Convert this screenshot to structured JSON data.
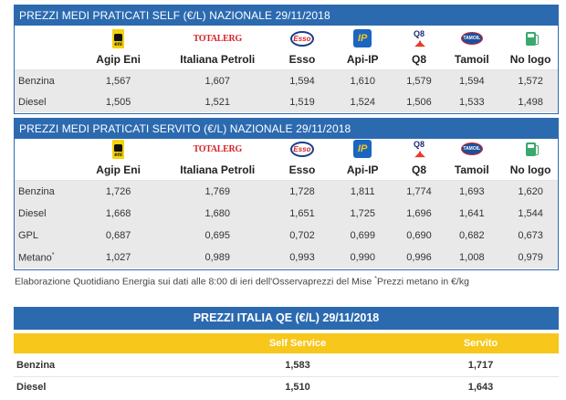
{
  "brands": [
    "Agip Eni",
    "Italiana Petroli",
    "Esso",
    "Api-IP",
    "Q8",
    "Tamoil",
    "No logo"
  ],
  "brand_logos": {
    "agip": {
      "icon": "agip-eni-logo",
      "text": "eni"
    },
    "totalerg": {
      "icon": "totalerg-logo",
      "text": "TOTALERG"
    },
    "esso": {
      "icon": "esso-logo",
      "text": "Esso"
    },
    "ip": {
      "icon": "api-ip-logo",
      "text": "IP"
    },
    "q8": {
      "icon": "q8-logo",
      "text": "Q8"
    },
    "tamoil": {
      "icon": "tamoil-logo",
      "text": "TAMOIL"
    },
    "nologo": {
      "icon": "fuel-pump-icon"
    }
  },
  "self_table": {
    "title": "PREZZI MEDI PRATICATI SELF (€/L) NAZIONALE 29/11/2018",
    "rows": [
      {
        "fuel": "Benzina",
        "values": [
          "1,567",
          "1,607",
          "1,594",
          "1,610",
          "1,579",
          "1,594",
          "1,572"
        ]
      },
      {
        "fuel": "Diesel",
        "values": [
          "1,505",
          "1,521",
          "1,519",
          "1,524",
          "1,506",
          "1,533",
          "1,498"
        ]
      }
    ]
  },
  "servito_table": {
    "title": "PREZZI MEDI PRATICATI SERVITO (€/L) NAZIONALE 29/11/2018",
    "rows": [
      {
        "fuel": "Benzina",
        "values": [
          "1,726",
          "1,769",
          "1,728",
          "1,811",
          "1,774",
          "1,693",
          "1,620"
        ]
      },
      {
        "fuel": "Diesel",
        "values": [
          "1,668",
          "1,680",
          "1,651",
          "1,725",
          "1,696",
          "1,641",
          "1,544"
        ]
      },
      {
        "fuel": "GPL",
        "values": [
          "0,687",
          "0,695",
          "0,702",
          "0,699",
          "0,690",
          "0,682",
          "0,673"
        ]
      },
      {
        "fuel": "Metano",
        "fuel_mark": "*",
        "values": [
          "1,027",
          "0,989",
          "0,993",
          "0,990",
          "0,996",
          "1,008",
          "0,979"
        ]
      }
    ]
  },
  "note": {
    "text": "Elaborazione Quotidiano Energia sui dati alle 8:00 di ieri dell'Osservaprezzi del Mise ",
    "mark": "*",
    "tail": "Prezzi metano in €/kg"
  },
  "italia_qe": {
    "title": "PREZZI ITALIA QE (€/L) 29/11/2018",
    "headers": [
      "",
      "Self Service",
      "Servito"
    ],
    "rows": [
      {
        "fuel": "Benzina",
        "self": "1,583",
        "servito": "1,717"
      },
      {
        "fuel": "Diesel",
        "self": "1,510",
        "servito": "1,643"
      }
    ]
  },
  "colors": {
    "header_blue": "#2c6ab0",
    "accent_yellow": "#f7c71b",
    "row_shade": "#e9e9e9"
  }
}
